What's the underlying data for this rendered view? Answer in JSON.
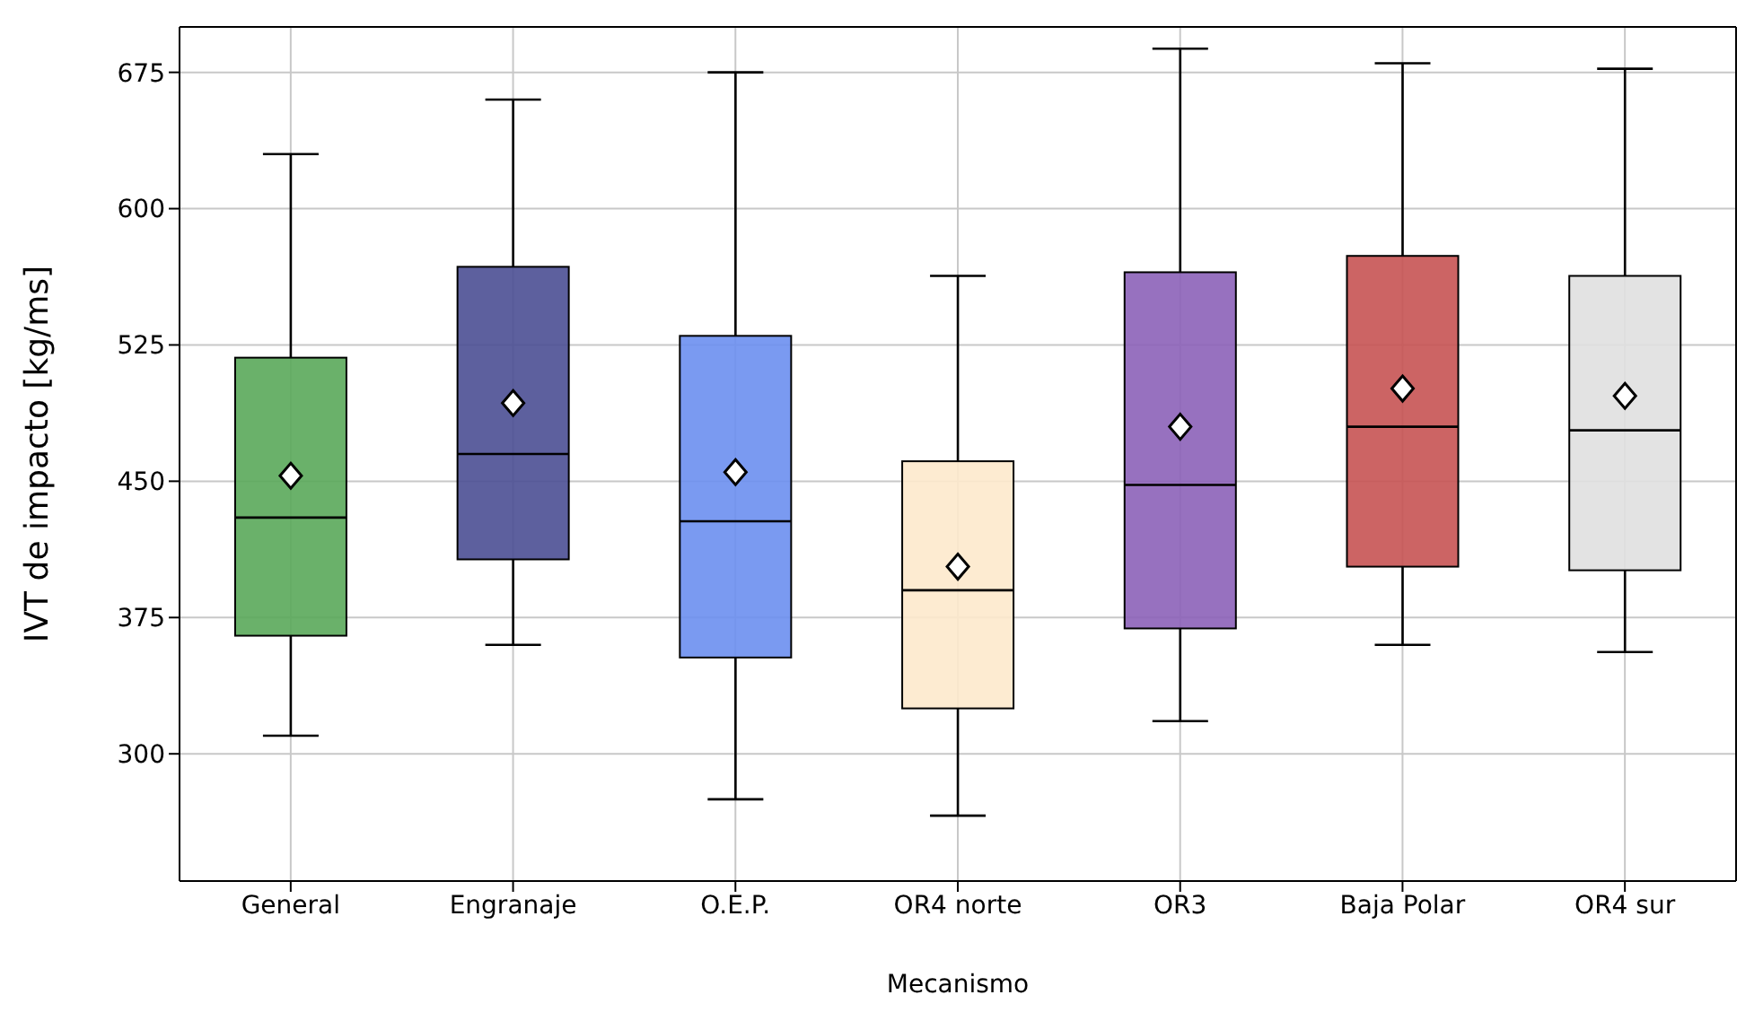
{
  "chart_data": {
    "type": "box",
    "xlabel": "Mecanismo",
    "ylabel": "IVT de impacto [kg/ms]",
    "categories": [
      "General",
      "Engranaje",
      "O.E.P.",
      "OR4 norte",
      "OR3",
      "Baja Polar",
      "OR4 sur"
    ],
    "colors": [
      "#5aa85a",
      "#4b4f94",
      "#6b8ff0",
      "#fde9cc",
      "#8c62b8",
      "#c65353",
      "#e0e0e0"
    ],
    "boxes": [
      {
        "low": 310,
        "q1": 365,
        "median": 430,
        "q3": 518,
        "high": 630,
        "mean": 453
      },
      {
        "low": 360,
        "q1": 407,
        "median": 465,
        "q3": 568,
        "high": 660,
        "mean": 493
      },
      {
        "low": 275,
        "q1": 353,
        "median": 428,
        "q3": 530,
        "high": 675,
        "mean": 455
      },
      {
        "low": 266,
        "q1": 325,
        "median": 390,
        "q3": 461,
        "high": 563,
        "mean": 403
      },
      {
        "low": 318,
        "q1": 369,
        "median": 448,
        "q3": 565,
        "high": 688,
        "mean": 480
      },
      {
        "low": 360,
        "q1": 403,
        "median": 480,
        "q3": 574,
        "high": 680,
        "mean": 501
      },
      {
        "low": 356,
        "q1": 401,
        "median": 478,
        "q3": 563,
        "high": 677,
        "mean": 497
      }
    ],
    "ylim": [
      230,
      700
    ],
    "yticks": [
      300,
      375,
      450,
      525,
      600,
      675
    ],
    "grid": true,
    "marker": "diamond"
  }
}
